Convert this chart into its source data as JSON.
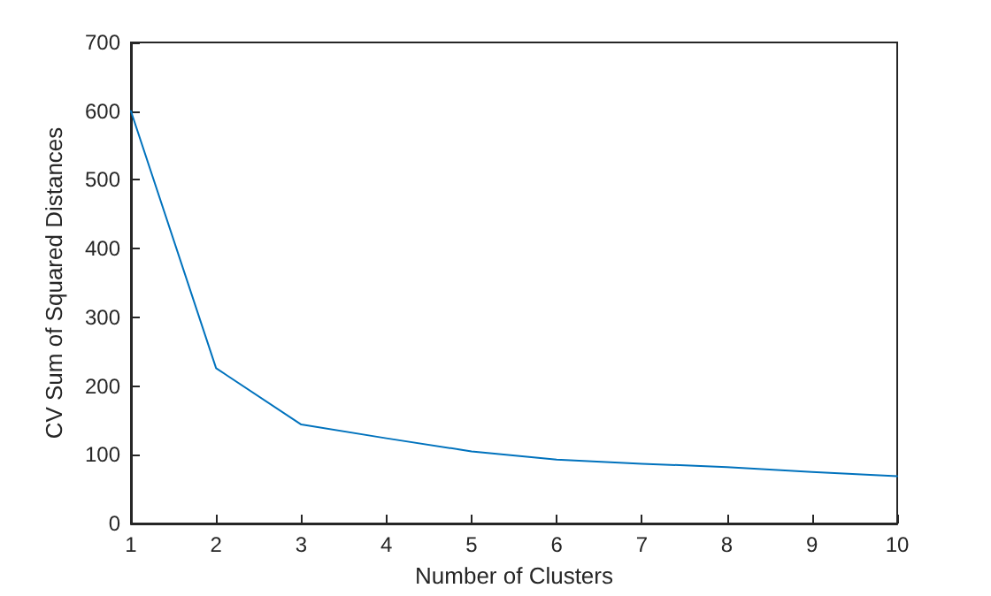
{
  "chart_data": {
    "type": "line",
    "xlabel": "Number of Clusters",
    "ylabel": "CV Sum of Squared Distances",
    "x": [
      1,
      2,
      3,
      4,
      5,
      6,
      7,
      8,
      9,
      10
    ],
    "series": [
      {
        "color": "#0072bd",
        "values": [
          600,
          226,
          144,
          124,
          105,
          93,
          87,
          82,
          75,
          69
        ]
      }
    ],
    "xlim": [
      1,
      10
    ],
    "xticks": [
      1,
      2,
      3,
      4,
      5,
      6,
      7,
      8,
      9,
      10
    ],
    "ylim": [
      0,
      700
    ],
    "yticks": [
      0,
      100,
      200,
      300,
      400,
      500,
      600,
      700
    ],
    "grid": false,
    "marker": "none",
    "line_style": "solid"
  }
}
